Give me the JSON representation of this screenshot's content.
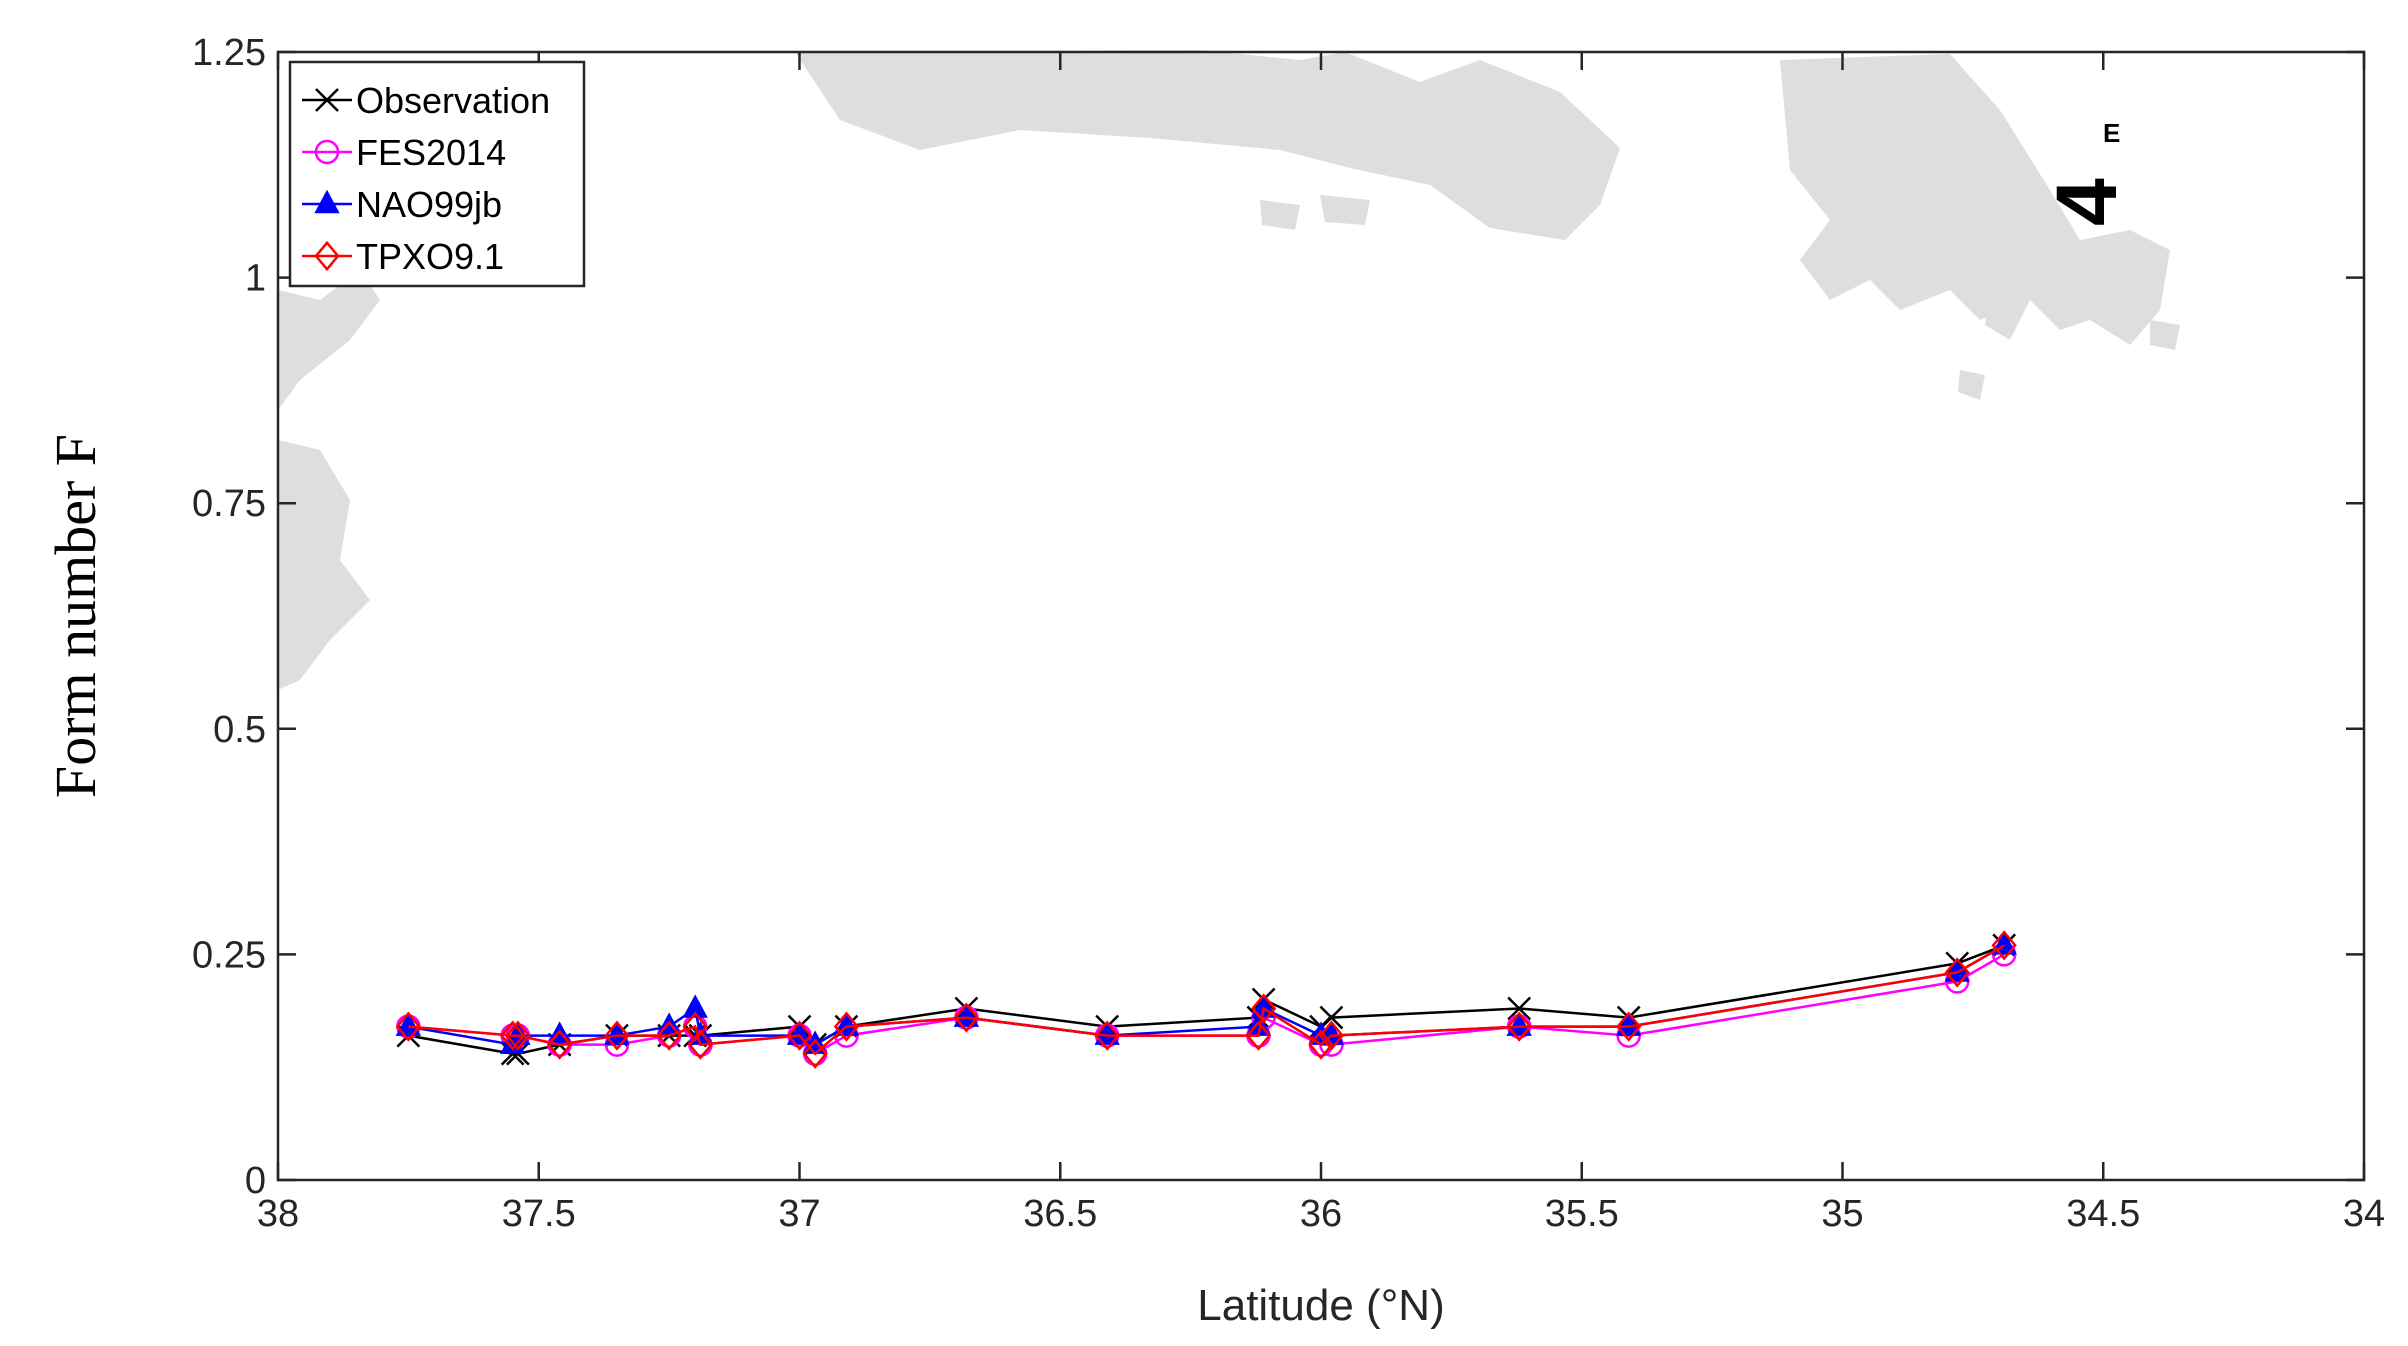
{
  "chart_data": {
    "type": "line",
    "title": "",
    "xlabel": "Latitude (°N)",
    "ylabel": "Form number F",
    "xlim": [
      38,
      34
    ],
    "ylim": [
      0,
      1.25
    ],
    "x_reversed": true,
    "grid": false,
    "legend_placement": "top-left",
    "xticks": [
      "38",
      "37.5",
      "37",
      "36.5",
      "36",
      "35.5",
      "35",
      "34.5",
      "34"
    ],
    "yticks": [
      "0",
      "0.25",
      "0.5",
      "0.75",
      "1",
      "1.25"
    ],
    "x": [
      37.75,
      37.55,
      37.54,
      37.46,
      37.35,
      37.25,
      37.2,
      37.19,
      37.0,
      36.97,
      36.91,
      36.68,
      36.41,
      36.12,
      36.11,
      36.0,
      35.98,
      35.62,
      35.41,
      34.78,
      34.69
    ],
    "series": [
      {
        "name": "Observation",
        "color": "#000000",
        "marker": "x",
        "values": [
          0.16,
          0.14,
          0.14,
          0.15,
          0.16,
          0.16,
          0.16,
          0.16,
          0.17,
          0.15,
          0.17,
          0.19,
          0.17,
          0.18,
          0.2,
          0.17,
          0.18,
          0.19,
          0.18,
          0.24,
          0.26
        ]
      },
      {
        "name": "FES2014",
        "color": "#ff00ff",
        "marker": "circle",
        "values": [
          0.17,
          0.16,
          0.16,
          0.15,
          0.15,
          0.16,
          0.17,
          0.15,
          0.16,
          0.14,
          0.16,
          0.18,
          0.16,
          0.16,
          0.18,
          0.15,
          0.15,
          0.17,
          0.16,
          0.22,
          0.25
        ]
      },
      {
        "name": "NAO99jb",
        "color": "#0000ff",
        "marker": "triangle",
        "values": [
          0.17,
          0.15,
          0.16,
          0.16,
          0.16,
          0.17,
          0.19,
          0.16,
          0.16,
          0.15,
          0.17,
          0.18,
          0.16,
          0.17,
          0.19,
          0.16,
          0.16,
          0.17,
          0.17,
          0.23,
          0.26
        ]
      },
      {
        "name": "TPXO9.1",
        "color": "#ff0000",
        "marker": "diamond",
        "values": [
          0.17,
          0.16,
          0.16,
          0.15,
          0.16,
          0.16,
          0.17,
          0.15,
          0.16,
          0.14,
          0.17,
          0.18,
          0.16,
          0.16,
          0.19,
          0.15,
          0.16,
          0.17,
          0.17,
          0.23,
          0.26
        ]
      }
    ],
    "annotations": [
      "4",
      "E"
    ]
  }
}
